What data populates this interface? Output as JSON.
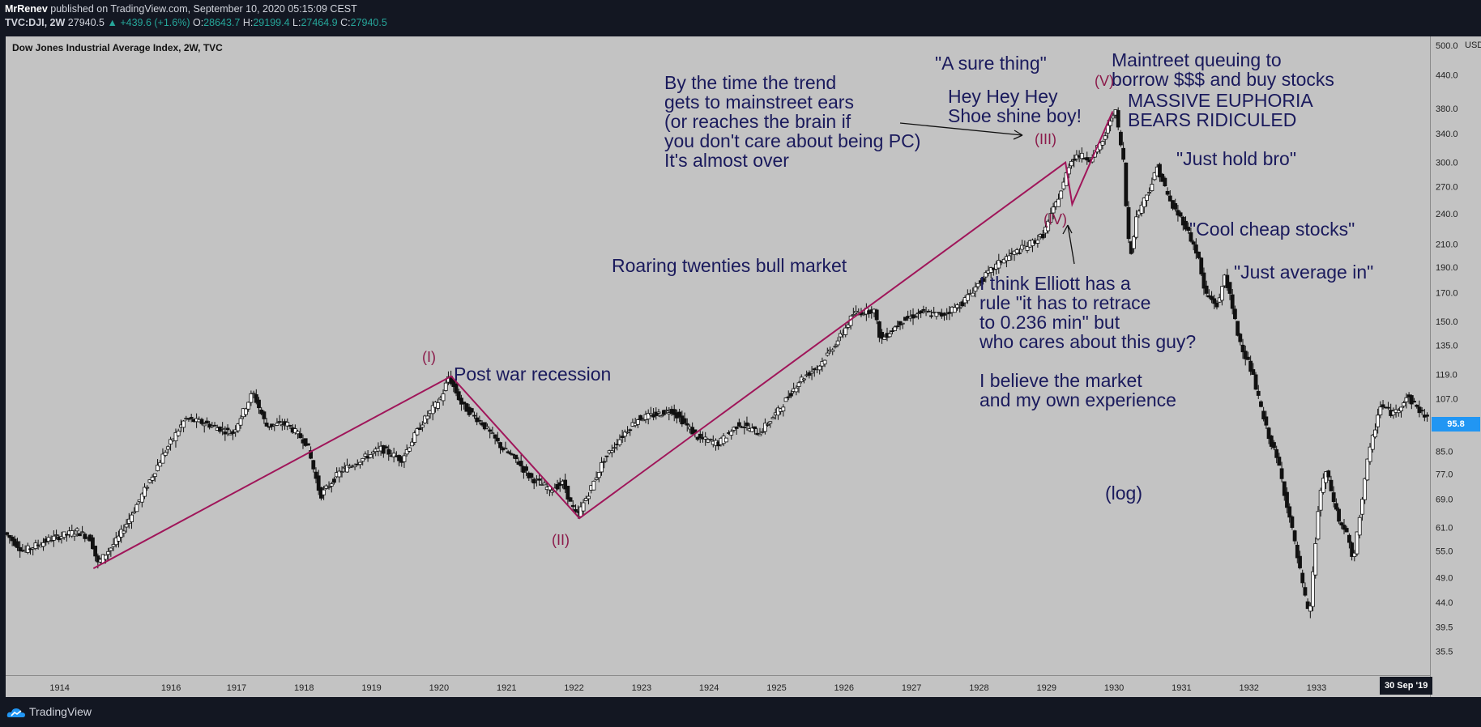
{
  "header": {
    "author": "MrRenev",
    "published_text": "published on TradingView.com, September 10, 2020 05:15:09 CEST",
    "symbol": "TVC:DJI, 2W",
    "last": "27940.5",
    "change": "▲ +439.6 (+1.6%)",
    "open_label": "O:",
    "open": "28643.7",
    "high_label": "H:",
    "high": "29199.4",
    "low_label": "L:",
    "low": "27464.9",
    "close_label": "C:",
    "close": "27940.5"
  },
  "chart_data": {
    "type": "candlestick",
    "title": "Dow Jones Industrial Average Index, 2W, TVC",
    "scale": "log",
    "currency": "USD",
    "x_ticks": [
      "1914",
      "1916",
      "1917",
      "1918",
      "1919",
      "1920",
      "1921",
      "1922",
      "1923",
      "1924",
      "1925",
      "1926",
      "1927",
      "1928",
      "1929",
      "1930",
      "1931",
      "1932",
      "1933"
    ],
    "y_ticks": [
      500.0,
      440.0,
      380.0,
      340.0,
      300.0,
      270.0,
      240.0,
      210.0,
      190.0,
      170.0,
      150.0,
      135.0,
      119.0,
      107.0,
      95.8,
      85.0,
      77.0,
      69.0,
      61.0,
      55.0,
      49.0,
      44.0,
      39.5,
      35.5
    ],
    "y_tick_labels": [
      "500.0",
      "440.0",
      "380.0",
      "340.0",
      "300.0",
      "270.0",
      "240.0",
      "210.0",
      "190.0",
      "170.0",
      "150.0",
      "135.0",
      "119.0",
      "107.0",
      "95.8",
      "85.0",
      "77.0",
      "69.0",
      "61.0",
      "55.0",
      "49.0",
      "44.0",
      "39.5",
      "35.5"
    ],
    "ylim": [
      32,
      520
    ],
    "xlim": [
      1913.2,
      1934.3
    ],
    "price_path": [
      [
        1913.2,
        60
      ],
      [
        1913.5,
        55
      ],
      [
        1913.9,
        58
      ],
      [
        1914.3,
        60
      ],
      [
        1914.5,
        58
      ],
      [
        1914.6,
        52
      ],
      [
        1914.9,
        58
      ],
      [
        1915.2,
        68
      ],
      [
        1915.6,
        85
      ],
      [
        1915.9,
        98
      ],
      [
        1916.2,
        96
      ],
      [
        1916.6,
        92
      ],
      [
        1916.9,
        110
      ],
      [
        1917.1,
        95
      ],
      [
        1917.4,
        96
      ],
      [
        1917.7,
        88
      ],
      [
        1917.9,
        70
      ],
      [
        1918.2,
        78
      ],
      [
        1918.5,
        82
      ],
      [
        1918.8,
        86
      ],
      [
        1919.1,
        82
      ],
      [
        1919.4,
        96
      ],
      [
        1919.7,
        108
      ],
      [
        1919.8,
        118
      ],
      [
        1920.0,
        104
      ],
      [
        1920.3,
        96
      ],
      [
        1920.6,
        86
      ],
      [
        1920.8,
        82
      ],
      [
        1921.0,
        76
      ],
      [
        1921.3,
        72
      ],
      [
        1921.5,
        74
      ],
      [
        1921.6,
        68
      ],
      [
        1921.7,
        64
      ],
      [
        1921.9,
        72
      ],
      [
        1922.1,
        82
      ],
      [
        1922.4,
        92
      ],
      [
        1922.6,
        98
      ],
      [
        1922.9,
        100
      ],
      [
        1923.1,
        102
      ],
      [
        1923.3,
        96
      ],
      [
        1923.5,
        90
      ],
      [
        1923.8,
        88
      ],
      [
        1924.1,
        96
      ],
      [
        1924.4,
        92
      ],
      [
        1924.7,
        102
      ],
      [
        1925.0,
        116
      ],
      [
        1925.3,
        124
      ],
      [
        1925.6,
        140
      ],
      [
        1925.8,
        155
      ],
      [
        1926.1,
        158
      ],
      [
        1926.2,
        138
      ],
      [
        1926.5,
        150
      ],
      [
        1926.8,
        156
      ],
      [
        1927.1,
        154
      ],
      [
        1927.4,
        162
      ],
      [
        1927.7,
        180
      ],
      [
        1928.0,
        196
      ],
      [
        1928.3,
        206
      ],
      [
        1928.6,
        218
      ],
      [
        1928.9,
        270
      ],
      [
        1929.0,
        300
      ],
      [
        1929.1,
        310
      ],
      [
        1929.3,
        305
      ],
      [
        1929.5,
        330
      ],
      [
        1929.6,
        360
      ],
      [
        1929.67,
        381
      ],
      [
        1929.8,
        300
      ],
      [
        1929.85,
        230
      ],
      [
        1929.9,
        200
      ],
      [
        1930.0,
        240
      ],
      [
        1930.2,
        270
      ],
      [
        1930.3,
        294
      ],
      [
        1930.5,
        250
      ],
      [
        1930.7,
        230
      ],
      [
        1930.9,
        200
      ],
      [
        1931.0,
        170
      ],
      [
        1931.2,
        160
      ],
      [
        1931.3,
        185
      ],
      [
        1931.5,
        140
      ],
      [
        1931.7,
        120
      ],
      [
        1931.9,
        95
      ],
      [
        1932.1,
        80
      ],
      [
        1932.3,
        60
      ],
      [
        1932.5,
        44
      ],
      [
        1932.55,
        41
      ],
      [
        1932.7,
        70
      ],
      [
        1932.8,
        78
      ],
      [
        1933.0,
        62
      ],
      [
        1933.1,
        60
      ],
      [
        1933.2,
        52
      ],
      [
        1933.4,
        80
      ],
      [
        1933.6,
        104
      ],
      [
        1933.8,
        100
      ],
      [
        1934.0,
        108
      ],
      [
        1934.3,
        98
      ]
    ],
    "wave_lines": [
      [
        [
          1914.5,
          51
        ],
        [
          1919.8,
          118
        ],
        [
          1921.7,
          63.5
        ],
        [
          1928.9,
          300
        ],
        [
          1929.0,
          250
        ],
        [
          1929.6,
          375
        ]
      ]
    ],
    "wave_labels": [
      "(I)",
      "(II)",
      "(III)",
      "(IV)",
      "(V)"
    ],
    "last_price_label": "95.8",
    "crosshair_date": "30 Sep '19",
    "annotations": [
      "By the time the trend\ngets to mainstreet ears\n(or reaches the brain if\nyou don't care about being PC)\nIt's almost over",
      "\"A sure thing\"",
      "Hey Hey Hey\nShoe shine boy!",
      "Maintreet queuing to\nborrow $$$ and buy stocks",
      "MASSIVE EUPHORIA\nBEARS RIDICULED",
      "\"Just hold bro\"",
      "\"Cool cheap stocks\"",
      "\"Just average in\"",
      "Roaring twenties bull market",
      "I think Elliott has a\nrule \"it has to retrace\nto 0.236 min\" but\nwho cares about this guy?\n\nI believe the market\nand my own experience",
      "Post war recession",
      "(log)"
    ]
  },
  "footer": {
    "brand": "TradingView"
  }
}
